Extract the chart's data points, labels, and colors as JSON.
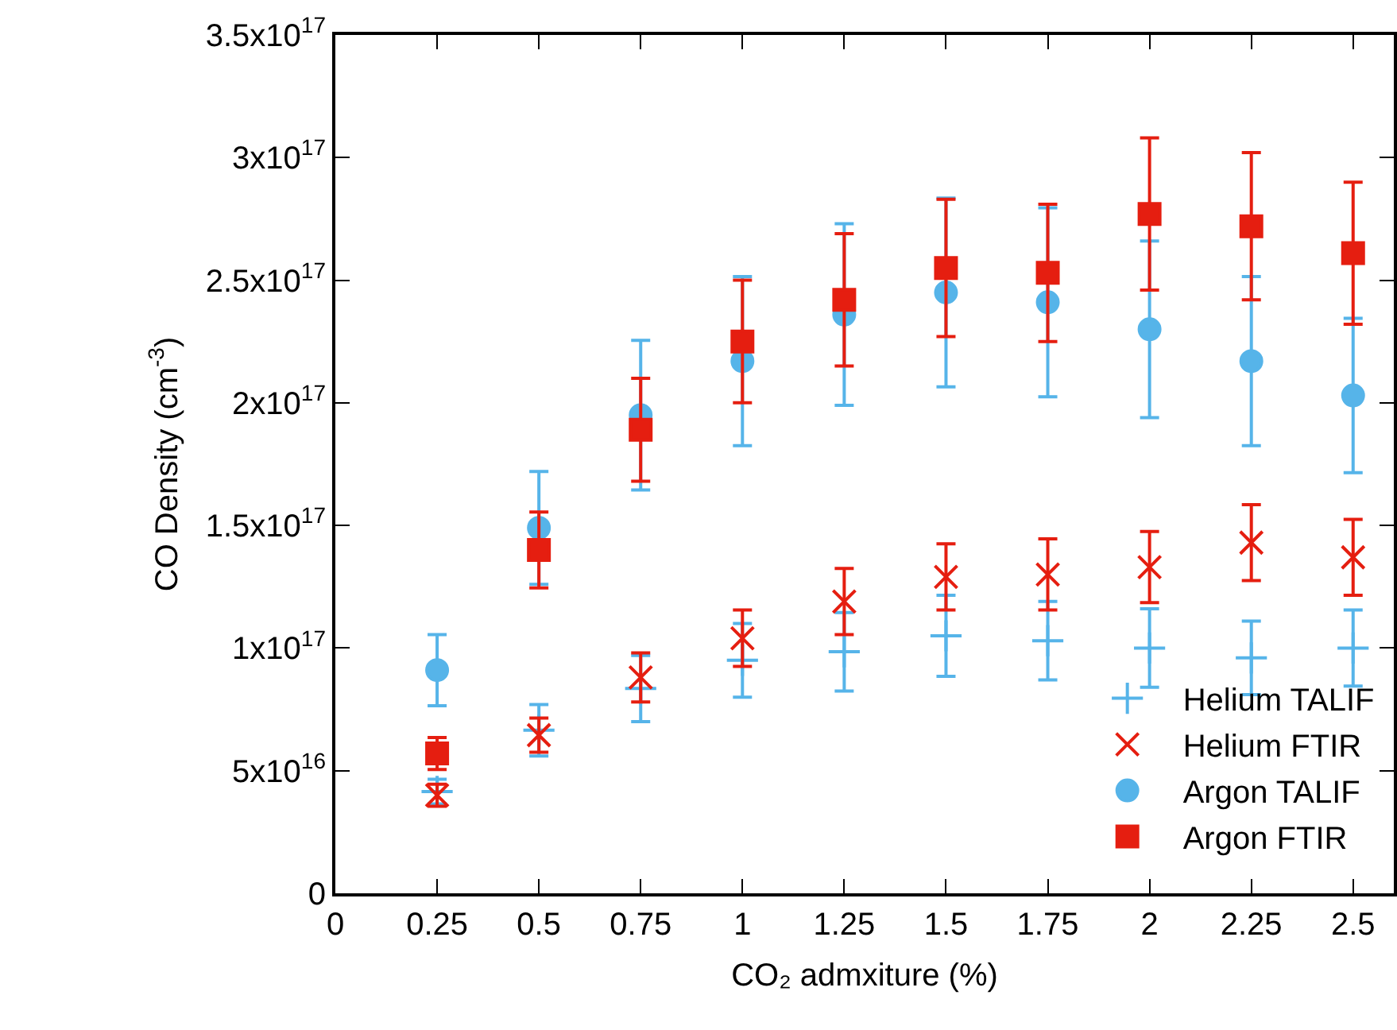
{
  "chart_data": {
    "type": "scatter",
    "xlabel": "CO₂ admxiture (%)",
    "ylabel": "CO Density (cm$^{-3}$)",
    "x": [
      0.25,
      0.5,
      0.75,
      1,
      1.25,
      1.5,
      1.75,
      2,
      2.25,
      2.5
    ],
    "xlim": [
      0,
      2.6
    ],
    "xticks": [
      0,
      0.25,
      0.5,
      0.75,
      1,
      1.25,
      1.5,
      1.75,
      2,
      2.25,
      2.5
    ],
    "ylim": [
      0,
      3.5e+17
    ],
    "yticks": [
      {
        "value": 0,
        "label": "0"
      },
      {
        "value": 5e+16,
        "label": "5x10$^{16}$"
      },
      {
        "value": 1e+17,
        "label": "1x10$^{17}$"
      },
      {
        "value": 1.5e+17,
        "label": "1.5x10$^{17}$"
      },
      {
        "value": 2e+17,
        "label": "2x10$^{17}$"
      },
      {
        "value": 2.5e+17,
        "label": "2.5x10$^{17}$"
      },
      {
        "value": 3e+17,
        "label": "3x10$^{17}$"
      },
      {
        "value": 3.5e+17,
        "label": "3.5x10$^{17}$"
      }
    ],
    "grid": false,
    "legend": "bottom right",
    "line_style": "none",
    "series": [
      {
        "name": "Helium TALIF",
        "color": "#56b4e9",
        "marker": "cross",
        "values": [
          4.15e+16,
          6.65e+16,
          8.35e+16,
          9.5e+16,
          9.85e+16,
          1.05e+17,
          1.03e+17,
          1e+17,
          9.6e+16,
          1e+17
        ],
        "errors": [
          5000000000000000.0,
          1.05e+16,
          1.35e+16,
          1.5e+16,
          1.6e+16,
          1.65e+16,
          1.6e+16,
          1.6e+16,
          1.5e+16,
          1.55e+16
        ]
      },
      {
        "name": "Helium FTIR",
        "color": "#e51e10",
        "marker": "x",
        "values": [
          4e+16,
          6.45e+16,
          8.8e+16,
          1.04e+17,
          1.19e+17,
          1.29e+17,
          1.3e+17,
          1.33e+17,
          1.43e+17,
          1.37e+17
        ],
        "errors": [
          4500000000000000.0,
          7000000000000000.0,
          1e+16,
          1.15e+16,
          1.35e+16,
          1.35e+16,
          1.45e+16,
          1.45e+16,
          1.55e+16,
          1.55e+16
        ]
      },
      {
        "name": "Argon TALIF",
        "color": "#56b4e9",
        "marker": "circle",
        "values": [
          9.1e+16,
          1.49e+17,
          1.95e+17,
          2.17e+17,
          2.36e+17,
          2.45e+17,
          2.41e+17,
          2.3e+17,
          2.17e+17,
          2.03e+17
        ],
        "errors": [
          1.45e+16,
          2.3e+16,
          3.05e+16,
          3.45e+16,
          3.7e+16,
          3.85e+16,
          3.85e+16,
          3.6e+16,
          3.45e+16,
          3.15e+16
        ]
      },
      {
        "name": "Argon FTIR",
        "color": "#e51e10",
        "marker": "square",
        "values": [
          5.7e+16,
          1.4e+17,
          1.89e+17,
          2.25e+17,
          2.42e+17,
          2.55e+17,
          2.53e+17,
          2.77e+17,
          2.72e+17,
          2.61e+17
        ],
        "errors": [
          6500000000000000.0,
          1.55e+16,
          2.1e+16,
          2.5e+16,
          2.7e+16,
          2.8e+16,
          2.8e+16,
          3.1e+16,
          3e+16,
          2.9e+16
        ]
      }
    ]
  }
}
